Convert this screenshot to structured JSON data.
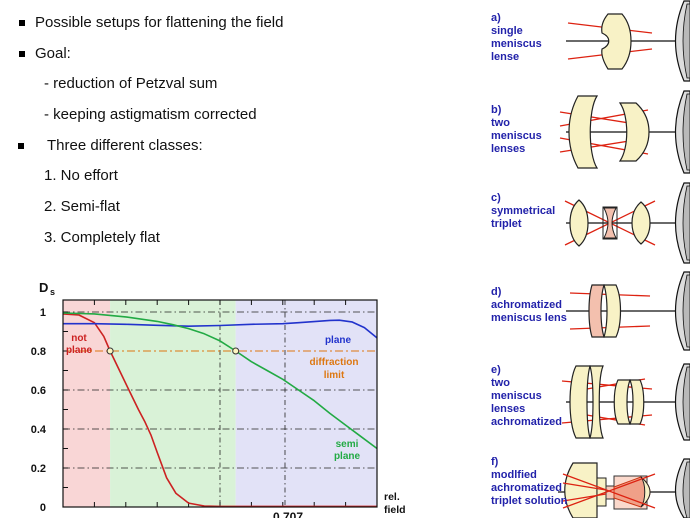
{
  "bullets": {
    "items": [
      {
        "text": "Possible setups for flattening the field"
      },
      {
        "text": "Goal:"
      },
      {
        "text": "- reduction of Petzval sum"
      },
      {
        "text": "- keeping astigmatism corrected"
      },
      {
        "text": "Three different classes:"
      },
      {
        "text": "1. No effort"
      },
      {
        "text": "2. Semi-flat"
      },
      {
        "text": "3. Completely flat"
      }
    ]
  },
  "chart_data": {
    "type": "line",
    "xlabel": "rel. field",
    "ylabel": "Ds",
    "xlim": [
      0,
      1
    ],
    "ylim": [
      0,
      1.06
    ],
    "gridlines_y": [
      0.2,
      0.4,
      0.6,
      1.0
    ],
    "x_guides": [
      0.5,
      0.707
    ],
    "diffraction_limit": 0.8,
    "diffraction_color": "#dd7711",
    "zones": [
      {
        "label": "not plane",
        "from": 0,
        "to": 0.15,
        "color": "#f9d6d6"
      },
      {
        "label": "semi plane",
        "from": 0.15,
        "to": 0.55,
        "color": "#d9f2d7"
      },
      {
        "label": "plane",
        "from": 0.55,
        "to": 1,
        "color": "#e2e2f7"
      }
    ],
    "markers": [
      [
        0.15,
        0.8
      ],
      [
        0.55,
        0.8
      ]
    ],
    "series": [
      {
        "name": "not plane",
        "color": "#cc2222",
        "x": [
          0,
          0.05,
          0.1,
          0.13,
          0.15,
          0.18,
          0.21,
          0.24,
          0.26,
          0.28,
          0.3,
          0.33,
          0.36,
          0.4,
          0.45,
          0.5,
          1
        ],
        "y": [
          0.99,
          0.985,
          0.945,
          0.875,
          0.8,
          0.7,
          0.6,
          0.5,
          0.44,
          0.37,
          0.28,
          0.15,
          0.07,
          0.02,
          0.005,
          0.003,
          0.003
        ]
      },
      {
        "name": "plane",
        "color": "#2233cc",
        "x": [
          0,
          0.1,
          0.2,
          0.3,
          0.4,
          0.5,
          0.6,
          0.7,
          0.75,
          0.8,
          0.85,
          0.88,
          0.92,
          0.96,
          1
        ],
        "y": [
          0.94,
          0.94,
          0.937,
          0.932,
          0.927,
          0.931,
          0.937,
          0.94,
          0.945,
          0.951,
          0.957,
          0.958,
          0.949,
          0.92,
          0.867
        ]
      },
      {
        "name": "semi plane",
        "color": "#22aa44",
        "x": [
          0,
          0.1,
          0.2,
          0.3,
          0.35,
          0.4,
          0.45,
          0.5,
          0.55,
          0.6,
          0.65,
          0.7,
          0.75,
          0.8,
          0.85,
          0.9,
          0.95,
          1
        ],
        "y": [
          0.995,
          0.99,
          0.975,
          0.952,
          0.935,
          0.915,
          0.888,
          0.852,
          0.8,
          0.745,
          0.7,
          0.655,
          0.6,
          0.545,
          0.48,
          0.42,
          0.36,
          0.3
        ]
      }
    ],
    "labels": {
      "y_axis_main": "D",
      "y_axis_sub": "s",
      "yticks": [
        "1",
        "0.8",
        "0.6",
        "0.4",
        "0.2",
        "0"
      ],
      "not_plane": [
        "not",
        "plane"
      ],
      "plane": "plane",
      "diffraction": [
        "diffraction",
        "limit"
      ],
      "semi_plane": [
        "semi",
        "plane"
      ],
      "x_axis": [
        "rel.",
        "field"
      ],
      "x_annotation": "0.707"
    }
  },
  "lens_column": {
    "items": [
      {
        "id": "a",
        "lines": [
          "a)",
          "single",
          "meniscus",
          "lense"
        ]
      },
      {
        "id": "b",
        "lines": [
          "b)",
          "two",
          "meniscus",
          "lenses"
        ]
      },
      {
        "id": "c",
        "lines": [
          "c)",
          "symmetrical",
          "triplet"
        ]
      },
      {
        "id": "d",
        "lines": [
          "d)",
          "achromatized",
          "meniscus lens"
        ]
      },
      {
        "id": "e",
        "lines": [
          "e)",
          "two",
          "meniscus",
          "lenses",
          "achromatized"
        ]
      },
      {
        "id": "f",
        "lines": [
          "f)",
          "modlfied",
          "achromatized",
          "triplet solution"
        ]
      }
    ]
  },
  "colors": {
    "label_blue": "#2222aa",
    "lens_yellow": "#f8f2c6",
    "lens_pink": "#f3c0ae",
    "ray_red": "#dd2211",
    "objective_gray": "#dddddd",
    "objective_gray_dark": "#b9b9b9"
  }
}
